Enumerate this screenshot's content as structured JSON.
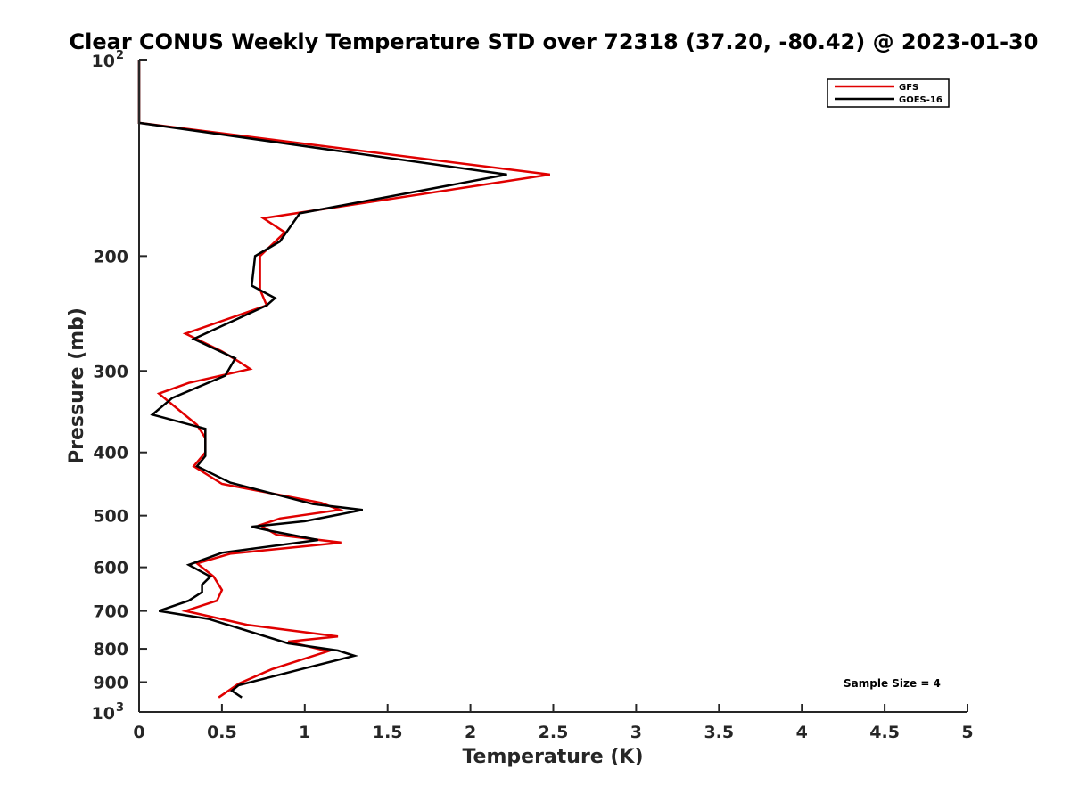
{
  "chart_data": {
    "type": "line",
    "title": "Clear CONUS Weekly Temperature STD over 72318 (37.20, -80.42) @ 2023-01-30",
    "xlabel": "Temperature (K)",
    "ylabel": "Pressure (mb)",
    "xlim": [
      0,
      5
    ],
    "ylim": [
      100,
      1000
    ],
    "y_scale": "log",
    "y_reversed": true,
    "x_ticks": [
      "0",
      "0.5",
      "1",
      "1.5",
      "2",
      "2.5",
      "3",
      "3.5",
      "4",
      "4.5",
      "5"
    ],
    "x_tick_values": [
      0,
      0.5,
      1,
      1.5,
      2,
      2.5,
      3,
      3.5,
      4,
      4.5,
      5
    ],
    "y_ticks": [
      {
        "value": 100,
        "base": "10",
        "exp": "2"
      },
      {
        "value": 200,
        "label": "200"
      },
      {
        "value": 300,
        "label": "300"
      },
      {
        "value": 400,
        "label": "400"
      },
      {
        "value": 500,
        "label": "500"
      },
      {
        "value": 600,
        "label": "600"
      },
      {
        "value": 700,
        "label": "700"
      },
      {
        "value": 800,
        "label": "800"
      },
      {
        "value": 900,
        "label": "900"
      },
      {
        "value": 1000,
        "base": "10",
        "exp": "3"
      }
    ],
    "legend_position": "top-right",
    "grid": false,
    "annotation": "Sample Size = 4",
    "series": [
      {
        "name": "GFS",
        "color": "#e00000",
        "points": [
          [
            0.0,
            100
          ],
          [
            0.0,
            125
          ],
          [
            2.48,
            150
          ],
          [
            0.75,
            175
          ],
          [
            0.88,
            184
          ],
          [
            0.73,
            200
          ],
          [
            0.73,
            225
          ],
          [
            0.77,
            238
          ],
          [
            0.28,
            263
          ],
          [
            0.5,
            280
          ],
          [
            0.6,
            290
          ],
          [
            0.67,
            298
          ],
          [
            0.3,
            313
          ],
          [
            0.12,
            325
          ],
          [
            0.35,
            363
          ],
          [
            0.4,
            380
          ],
          [
            0.4,
            400
          ],
          [
            0.33,
            420
          ],
          [
            0.5,
            447
          ],
          [
            1.1,
            478
          ],
          [
            1.21,
            490
          ],
          [
            0.85,
            505
          ],
          [
            0.73,
            517
          ],
          [
            0.83,
            535
          ],
          [
            1.22,
            550
          ],
          [
            0.55,
            572
          ],
          [
            0.35,
            592
          ],
          [
            0.45,
            620
          ],
          [
            0.5,
            650
          ],
          [
            0.47,
            675
          ],
          [
            0.28,
            700
          ],
          [
            0.65,
            735
          ],
          [
            1.2,
            766
          ],
          [
            0.9,
            780
          ],
          [
            1.14,
            807
          ],
          [
            0.8,
            860
          ],
          [
            0.6,
            905
          ],
          [
            0.48,
            950
          ]
        ]
      },
      {
        "name": "GOES-16",
        "color": "#000000",
        "points": [
          [
            0.0,
            100
          ],
          [
            0.0,
            125
          ],
          [
            2.22,
            150
          ],
          [
            0.97,
            172
          ],
          [
            0.85,
            190
          ],
          [
            0.7,
            200
          ],
          [
            0.68,
            222
          ],
          [
            0.82,
            232
          ],
          [
            0.77,
            238
          ],
          [
            0.33,
            268
          ],
          [
            0.58,
            287
          ],
          [
            0.52,
            305
          ],
          [
            0.2,
            330
          ],
          [
            0.08,
            350
          ],
          [
            0.4,
            368
          ],
          [
            0.4,
            405
          ],
          [
            0.35,
            420
          ],
          [
            0.55,
            445
          ],
          [
            1.05,
            480
          ],
          [
            1.35,
            490
          ],
          [
            1.0,
            510
          ],
          [
            0.68,
            520
          ],
          [
            0.8,
            528
          ],
          [
            1.08,
            545
          ],
          [
            0.5,
            570
          ],
          [
            0.3,
            595
          ],
          [
            0.43,
            620
          ],
          [
            0.38,
            638
          ],
          [
            0.38,
            655
          ],
          [
            0.3,
            675
          ],
          [
            0.12,
            700
          ],
          [
            0.42,
            720
          ],
          [
            0.9,
            785
          ],
          [
            1.2,
            805
          ],
          [
            1.3,
            820
          ],
          [
            1.0,
            857
          ],
          [
            0.6,
            910
          ],
          [
            0.56,
            928
          ],
          [
            0.62,
            950
          ]
        ]
      }
    ]
  }
}
